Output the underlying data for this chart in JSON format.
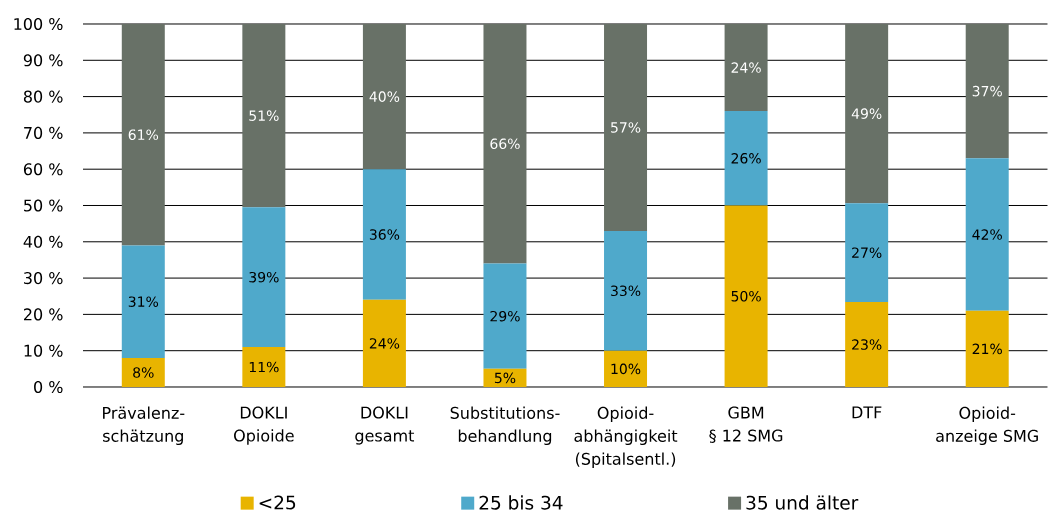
{
  "chart_data": {
    "type": "bar",
    "stacked": true,
    "categories": [
      "Prävalenz-\nschätzung",
      "DOKLI\nOpioide",
      "DOKLI\ngesamt",
      "Substitutions-\nbehandlung",
      "Opioid-\nabhängigkeit\n(Spitalsentl.)",
      "GBM\n§ 12 SMG",
      "DTF",
      "Opioid-\nanzeige SMG"
    ],
    "series": [
      {
        "name": "<25",
        "color": "#e8b400",
        "values": [
          8,
          11,
          24,
          5,
          10,
          50,
          23.4,
          21
        ],
        "value_labels": [
          "8%",
          "11%",
          "24%",
          "5%",
          "10%",
          "50%",
          "23%",
          "21%"
        ]
      },
      {
        "name": "25 bis 34",
        "color": "#4fa9cb",
        "values": [
          31,
          38.5,
          36,
          29,
          33,
          26,
          27.2,
          42
        ],
        "value_labels": [
          "31%",
          "39%",
          "36%",
          "29%",
          "33%",
          "26%",
          "27%",
          "42%"
        ]
      },
      {
        "name": "35 und älter",
        "color": "#687167",
        "values": [
          61,
          50.5,
          40,
          66,
          57,
          24,
          49.4,
          37
        ],
        "value_labels": [
          "61%",
          "51%",
          "40%",
          "66%",
          "57%",
          "24%",
          "49%",
          "37%"
        ]
      }
    ],
    "ylim": [
      0,
      100
    ],
    "yticks": [
      {
        "value": 0,
        "label": "0 %"
      },
      {
        "value": 10,
        "label": "10 %"
      },
      {
        "value": 20,
        "label": "20 %"
      },
      {
        "value": 30,
        "label": "30 %"
      },
      {
        "value": 40,
        "label": "40 %"
      },
      {
        "value": 50,
        "label": "50 %"
      },
      {
        "value": 60,
        "label": "60 %"
      },
      {
        "value": 70,
        "label": "70 %"
      },
      {
        "value": 80,
        "label": "80 %"
      },
      {
        "value": 90,
        "label": "90 %"
      },
      {
        "value": 100,
        "label": "100 %"
      }
    ],
    "grid": "y",
    "legend": "bottom"
  }
}
